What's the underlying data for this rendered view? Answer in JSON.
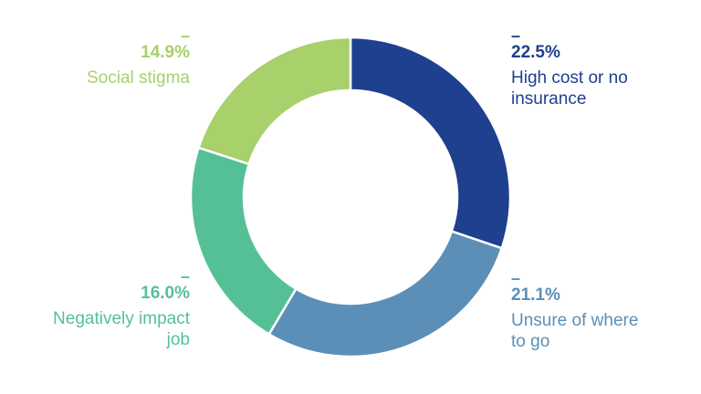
{
  "chart_data": {
    "type": "pie",
    "donut": true,
    "unit": "%",
    "slices": [
      {
        "label": "High cost or no insurance",
        "value": 22.5,
        "display": "22.5%",
        "color": "#1f3f8f"
      },
      {
        "label": "Unsure of where to go",
        "value": 21.1,
        "display": "21.1%",
        "color": "#5b8fb7"
      },
      {
        "label": "Negatively impact job",
        "value": 16.0,
        "display": "16.0%",
        "color": "#55c096"
      },
      {
        "label": "Social stigma",
        "value": 14.9,
        "display": "14.9%",
        "color": "#a8d06b"
      }
    ],
    "legend": "direct-labels",
    "dash": "–"
  }
}
